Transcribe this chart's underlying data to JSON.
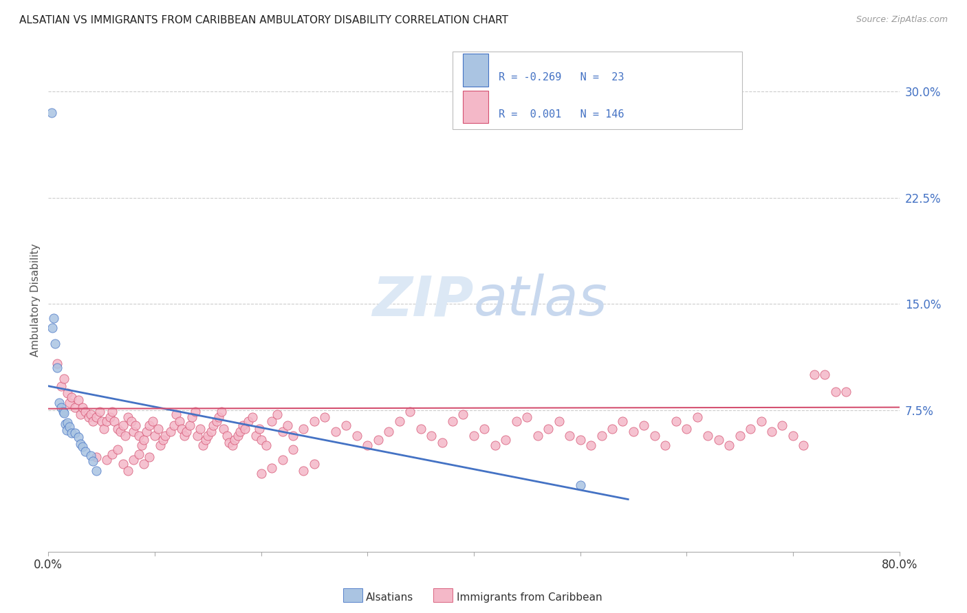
{
  "title": "ALSATIAN VS IMMIGRANTS FROM CARIBBEAN AMBULATORY DISABILITY CORRELATION CHART",
  "source": "Source: ZipAtlas.com",
  "ylabel": "Ambulatory Disability",
  "ytick_values": [
    0.075,
    0.15,
    0.225,
    0.3
  ],
  "ytick_labels": [
    "7.5%",
    "15.0%",
    "22.5%",
    "30.0%"
  ],
  "xmin": 0.0,
  "xmax": 0.8,
  "ymin": -0.025,
  "ymax": 0.33,
  "color_blue": "#aac4e2",
  "color_pink": "#f4b8c8",
  "line_blue": "#4472c4",
  "line_pink": "#d45070",
  "watermark_zip": "ZIP",
  "watermark_atlas": "atlas",
  "watermark_color": "#dce8f5",
  "alsatian_points": [
    [
      0.003,
      0.285
    ],
    [
      0.005,
      0.14
    ],
    [
      0.004,
      0.133
    ],
    [
      0.006,
      0.122
    ],
    [
      0.008,
      0.105
    ],
    [
      0.01,
      0.08
    ],
    [
      0.012,
      0.077
    ],
    [
      0.014,
      0.074
    ],
    [
      0.015,
      0.073
    ],
    [
      0.016,
      0.065
    ],
    [
      0.017,
      0.061
    ],
    [
      0.018,
      0.066
    ],
    [
      0.02,
      0.063
    ],
    [
      0.022,
      0.059
    ],
    [
      0.025,
      0.059
    ],
    [
      0.028,
      0.056
    ],
    [
      0.03,
      0.051
    ],
    [
      0.032,
      0.049
    ],
    [
      0.035,
      0.046
    ],
    [
      0.04,
      0.043
    ],
    [
      0.042,
      0.039
    ],
    [
      0.045,
      0.032
    ],
    [
      0.5,
      0.022
    ]
  ],
  "carib_points": [
    [
      0.008,
      0.108
    ],
    [
      0.012,
      0.092
    ],
    [
      0.015,
      0.097
    ],
    [
      0.018,
      0.087
    ],
    [
      0.02,
      0.08
    ],
    [
      0.022,
      0.084
    ],
    [
      0.025,
      0.077
    ],
    [
      0.028,
      0.082
    ],
    [
      0.03,
      0.072
    ],
    [
      0.032,
      0.077
    ],
    [
      0.035,
      0.074
    ],
    [
      0.038,
      0.07
    ],
    [
      0.04,
      0.072
    ],
    [
      0.042,
      0.067
    ],
    [
      0.045,
      0.07
    ],
    [
      0.048,
      0.074
    ],
    [
      0.05,
      0.067
    ],
    [
      0.052,
      0.062
    ],
    [
      0.055,
      0.067
    ],
    [
      0.058,
      0.07
    ],
    [
      0.06,
      0.074
    ],
    [
      0.062,
      0.067
    ],
    [
      0.065,
      0.062
    ],
    [
      0.068,
      0.06
    ],
    [
      0.07,
      0.064
    ],
    [
      0.072,
      0.057
    ],
    [
      0.075,
      0.07
    ],
    [
      0.078,
      0.067
    ],
    [
      0.08,
      0.06
    ],
    [
      0.082,
      0.064
    ],
    [
      0.085,
      0.057
    ],
    [
      0.088,
      0.05
    ],
    [
      0.09,
      0.054
    ],
    [
      0.092,
      0.06
    ],
    [
      0.095,
      0.064
    ],
    [
      0.098,
      0.067
    ],
    [
      0.1,
      0.057
    ],
    [
      0.103,
      0.062
    ],
    [
      0.105,
      0.05
    ],
    [
      0.108,
      0.054
    ],
    [
      0.11,
      0.057
    ],
    [
      0.115,
      0.06
    ],
    [
      0.118,
      0.064
    ],
    [
      0.12,
      0.072
    ],
    [
      0.123,
      0.067
    ],
    [
      0.125,
      0.062
    ],
    [
      0.128,
      0.057
    ],
    [
      0.13,
      0.06
    ],
    [
      0.133,
      0.064
    ],
    [
      0.135,
      0.07
    ],
    [
      0.138,
      0.074
    ],
    [
      0.14,
      0.057
    ],
    [
      0.143,
      0.062
    ],
    [
      0.145,
      0.05
    ],
    [
      0.148,
      0.054
    ],
    [
      0.15,
      0.057
    ],
    [
      0.153,
      0.06
    ],
    [
      0.155,
      0.064
    ],
    [
      0.158,
      0.067
    ],
    [
      0.16,
      0.07
    ],
    [
      0.163,
      0.074
    ],
    [
      0.165,
      0.062
    ],
    [
      0.168,
      0.057
    ],
    [
      0.17,
      0.052
    ],
    [
      0.173,
      0.05
    ],
    [
      0.175,
      0.054
    ],
    [
      0.178,
      0.057
    ],
    [
      0.18,
      0.06
    ],
    [
      0.183,
      0.064
    ],
    [
      0.185,
      0.062
    ],
    [
      0.188,
      0.067
    ],
    [
      0.192,
      0.07
    ],
    [
      0.195,
      0.057
    ],
    [
      0.198,
      0.062
    ],
    [
      0.2,
      0.054
    ],
    [
      0.205,
      0.05
    ],
    [
      0.21,
      0.067
    ],
    [
      0.215,
      0.072
    ],
    [
      0.22,
      0.06
    ],
    [
      0.225,
      0.064
    ],
    [
      0.23,
      0.057
    ],
    [
      0.24,
      0.062
    ],
    [
      0.25,
      0.067
    ],
    [
      0.26,
      0.07
    ],
    [
      0.27,
      0.06
    ],
    [
      0.28,
      0.064
    ],
    [
      0.29,
      0.057
    ],
    [
      0.3,
      0.05
    ],
    [
      0.31,
      0.054
    ],
    [
      0.32,
      0.06
    ],
    [
      0.33,
      0.067
    ],
    [
      0.34,
      0.074
    ],
    [
      0.35,
      0.062
    ],
    [
      0.36,
      0.057
    ],
    [
      0.37,
      0.052
    ],
    [
      0.38,
      0.067
    ],
    [
      0.39,
      0.072
    ],
    [
      0.4,
      0.057
    ],
    [
      0.41,
      0.062
    ],
    [
      0.42,
      0.05
    ],
    [
      0.43,
      0.054
    ],
    [
      0.44,
      0.067
    ],
    [
      0.45,
      0.07
    ],
    [
      0.46,
      0.057
    ],
    [
      0.47,
      0.062
    ],
    [
      0.48,
      0.067
    ],
    [
      0.49,
      0.057
    ],
    [
      0.5,
      0.054
    ],
    [
      0.51,
      0.05
    ],
    [
      0.52,
      0.057
    ],
    [
      0.53,
      0.062
    ],
    [
      0.54,
      0.067
    ],
    [
      0.55,
      0.06
    ],
    [
      0.56,
      0.064
    ],
    [
      0.57,
      0.057
    ],
    [
      0.58,
      0.05
    ],
    [
      0.59,
      0.067
    ],
    [
      0.6,
      0.062
    ],
    [
      0.61,
      0.07
    ],
    [
      0.62,
      0.057
    ],
    [
      0.63,
      0.054
    ],
    [
      0.64,
      0.05
    ],
    [
      0.65,
      0.057
    ],
    [
      0.66,
      0.062
    ],
    [
      0.67,
      0.067
    ],
    [
      0.68,
      0.06
    ],
    [
      0.69,
      0.064
    ],
    [
      0.7,
      0.057
    ],
    [
      0.71,
      0.05
    ],
    [
      0.72,
      0.1
    ],
    [
      0.73,
      0.1
    ],
    [
      0.74,
      0.088
    ],
    [
      0.75,
      0.088
    ],
    [
      0.045,
      0.042
    ],
    [
      0.055,
      0.04
    ],
    [
      0.06,
      0.044
    ],
    [
      0.065,
      0.047
    ],
    [
      0.07,
      0.037
    ],
    [
      0.075,
      0.032
    ],
    [
      0.08,
      0.04
    ],
    [
      0.085,
      0.044
    ],
    [
      0.09,
      0.037
    ],
    [
      0.095,
      0.042
    ],
    [
      0.2,
      0.03
    ],
    [
      0.21,
      0.034
    ],
    [
      0.22,
      0.04
    ],
    [
      0.23,
      0.047
    ],
    [
      0.24,
      0.032
    ],
    [
      0.25,
      0.037
    ]
  ],
  "blue_line_x": [
    0.0,
    0.545
  ],
  "blue_line_y": [
    0.092,
    0.012
  ],
  "pink_line_x": [
    0.0,
    0.8
  ],
  "pink_line_y": [
    0.076,
    0.077
  ]
}
